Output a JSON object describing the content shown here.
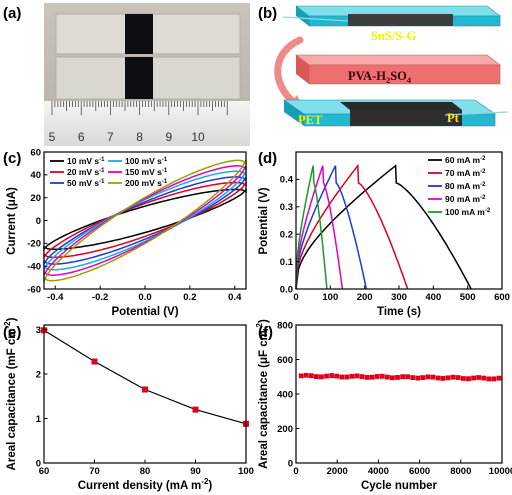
{
  "panels": {
    "a": {
      "label": "(a)",
      "ruler_numbers": [
        "5",
        "6",
        "7",
        "8",
        "9",
        "10"
      ]
    },
    "b": {
      "label": "(b)",
      "top_layer": "SnS/S-G",
      "electrolyte_base": "PVA-H",
      "electrolyte_sub1": "2",
      "electrolyte_mid": "SO",
      "electrolyte_sub2": "4",
      "substrate": "PET",
      "electrode": "Pt"
    }
  },
  "chart_data": [
    {
      "panel": "c",
      "label": "(c)",
      "type": "line",
      "xlabel": "Potential (V)",
      "ylabel": "Current (μA)",
      "xlim": [
        -0.45,
        0.45
      ],
      "ylim": [
        -60,
        60
      ],
      "xticks": [
        "-0.4",
        "-0.2",
        "0.0",
        "0.2",
        "0.4"
      ],
      "yticks": [
        "-60",
        "-40",
        "-20",
        "0",
        "20",
        "40",
        "60"
      ],
      "legend_location": "top-left",
      "series": [
        {
          "name": "10 mV s",
          "sup": "-1",
          "color": "#000000",
          "i_left": -25,
          "i_right": 27,
          "width": 12
        },
        {
          "name": "20 mV s",
          "sup": "-1",
          "color": "#e0001b",
          "i_left": -32,
          "i_right": 33,
          "width": 15
        },
        {
          "name": "50 mV s",
          "sup": "-1",
          "color": "#1a3ae0",
          "i_left": -38,
          "i_right": 38,
          "width": 17
        },
        {
          "name": "100 mV s",
          "sup": "-1",
          "color": "#1aaed8",
          "i_left": -43,
          "i_right": 43,
          "width": 19
        },
        {
          "name": "150 mV s",
          "sup": "-1",
          "color": "#e000c8",
          "i_left": -48,
          "i_right": 48,
          "width": 20
        },
        {
          "name": "200 mV s",
          "sup": "-1",
          "color": "#9aa000",
          "i_left": -53,
          "i_right": 53,
          "width": 21
        }
      ]
    },
    {
      "panel": "d",
      "label": "(d)",
      "type": "line",
      "xlabel": "Time (s)",
      "ylabel": "Potential (V)",
      "xlim": [
        0,
        600
      ],
      "ylim": [
        0,
        0.5
      ],
      "xticks": [
        "0",
        "100",
        "200",
        "300",
        "400",
        "500",
        "600"
      ],
      "yticks": [
        "0.0",
        "0.1",
        "0.2",
        "0.3",
        "0.4"
      ],
      "legend_location": "top-right",
      "series": [
        {
          "name": "60 mA m",
          "sup": "-2",
          "color": "#000000",
          "t_charge": 290,
          "t_end": 510
        },
        {
          "name": "70 mA m",
          "sup": "-2",
          "color": "#e0001b",
          "t_charge": 180,
          "t_end": 325
        },
        {
          "name": "80 mA m",
          "sup": "-2",
          "color": "#1a3ae0",
          "t_charge": 115,
          "t_end": 205
        },
        {
          "name": "90 mA m",
          "sup": "-2",
          "color": "#e000c8",
          "t_charge": 78,
          "t_end": 135
        },
        {
          "name": "100 mA m",
          "sup": "-2",
          "color": "#1a9a2a",
          "t_charge": 50,
          "t_end": 90
        }
      ]
    },
    {
      "panel": "e",
      "label": "(e)",
      "type": "line",
      "xlabel": "Current density (mA m",
      "xlabel_sup": "-2",
      "xlabel_close": ")",
      "ylabel": "Areal capacitance (mF cm",
      "ylabel_sup": "-2",
      "ylabel_close": ")",
      "xlim": [
        60,
        100
      ],
      "ylim": [
        0,
        3.1
      ],
      "xticks": [
        "60",
        "70",
        "80",
        "90",
        "100"
      ],
      "yticks": [
        "0",
        "1",
        "2",
        "3"
      ],
      "x": [
        60,
        70,
        80,
        90,
        100
      ],
      "values": [
        2.98,
        2.28,
        1.65,
        1.2,
        0.88
      ],
      "line_color": "#000000",
      "marker_color": "#e0001b"
    },
    {
      "panel": "f",
      "label": "(f)",
      "type": "scatter",
      "xlabel": "Cycle number",
      "ylabel": "Areal capacitance (μF cm",
      "ylabel_sup": "-2",
      "ylabel_close": ")",
      "xlim": [
        0,
        10000
      ],
      "ylim": [
        0,
        800
      ],
      "xticks": [
        "0",
        "2000",
        "4000",
        "6000",
        "8000",
        "10000"
      ],
      "yticks": [
        "0",
        "200",
        "400",
        "600",
        "800"
      ],
      "start": 505,
      "end": 490,
      "count": 40,
      "marker_color": "#e0001b"
    }
  ]
}
